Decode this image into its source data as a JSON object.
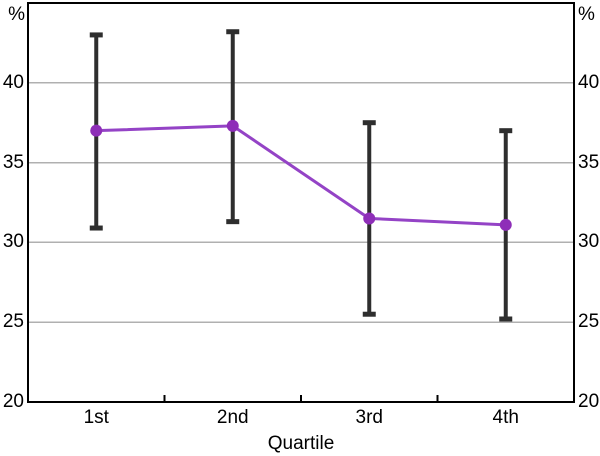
{
  "figure": {
    "background": "#ffffff"
  },
  "colors": {
    "line": "#9443C6",
    "marker": "#8E2EB8",
    "error_bar": "#2E2E2E",
    "grid": "#B0B0B0",
    "frame": "#000000",
    "text": "#000000"
  },
  "chart_data": {
    "type": "line",
    "title": "",
    "categories": [
      "1st",
      "2nd",
      "3rd",
      "4th"
    ],
    "xlabel": "Quartile",
    "ylabel": "",
    "unit": "%",
    "unit_positions": [
      "top-left",
      "top-right"
    ],
    "series": [
      {
        "name": "",
        "values": [
          37.0,
          37.3,
          31.5,
          31.1
        ],
        "error_low": [
          30.9,
          31.3,
          25.5,
          25.2
        ],
        "error_high": [
          43.0,
          43.2,
          37.5,
          37.0
        ]
      }
    ],
    "ylim": [
      20,
      45
    ],
    "yticks": [
      20,
      25,
      30,
      35,
      40
    ],
    "grid": true,
    "axis_labels_both_sides": true,
    "legend": "none",
    "marker_style": "filled-circle",
    "error_bar_caps": true
  }
}
